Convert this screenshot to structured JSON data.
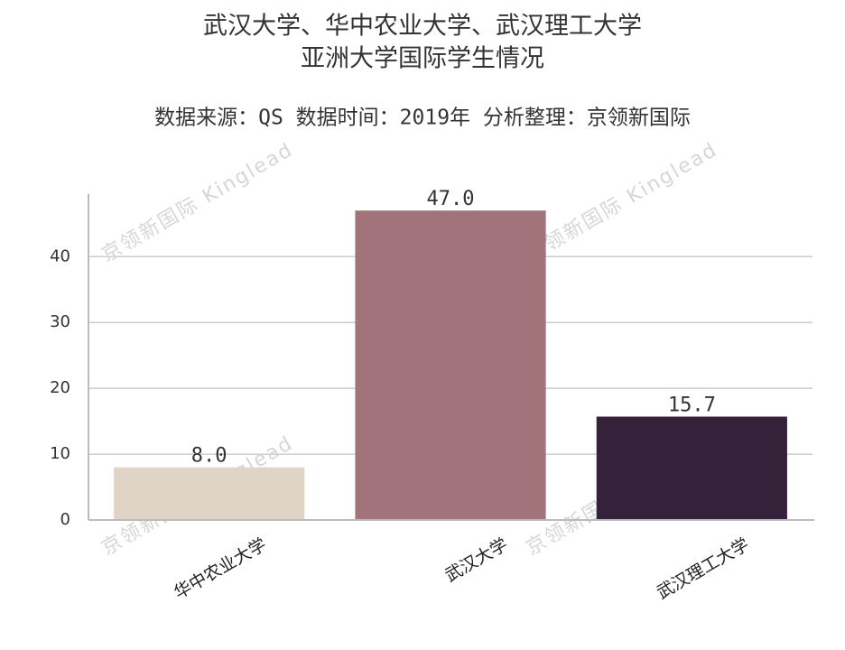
{
  "chart_data": {
    "type": "bar",
    "title": [
      "武汉大学、华中农业大学、武汉理工大学",
      "亚洲大学国际学生情况"
    ],
    "subtitle": "数据来源：QS 数据时间：2019年 分析整理：京领新国际",
    "watermark": "京领新国际 Kinglead",
    "categories": [
      "华中农业大学",
      "武汉大学",
      "武汉理工大学"
    ],
    "values": [
      8.0,
      47.0,
      15.7
    ],
    "value_labels": [
      "8.0",
      "47.0",
      "15.7"
    ],
    "colors": [
      "#e0d4c6",
      "#a2737a",
      "#36213a"
    ],
    "ylim": [
      0,
      49.5
    ],
    "yticks": [
      0,
      10,
      20,
      30,
      40
    ],
    "grid": true
  }
}
